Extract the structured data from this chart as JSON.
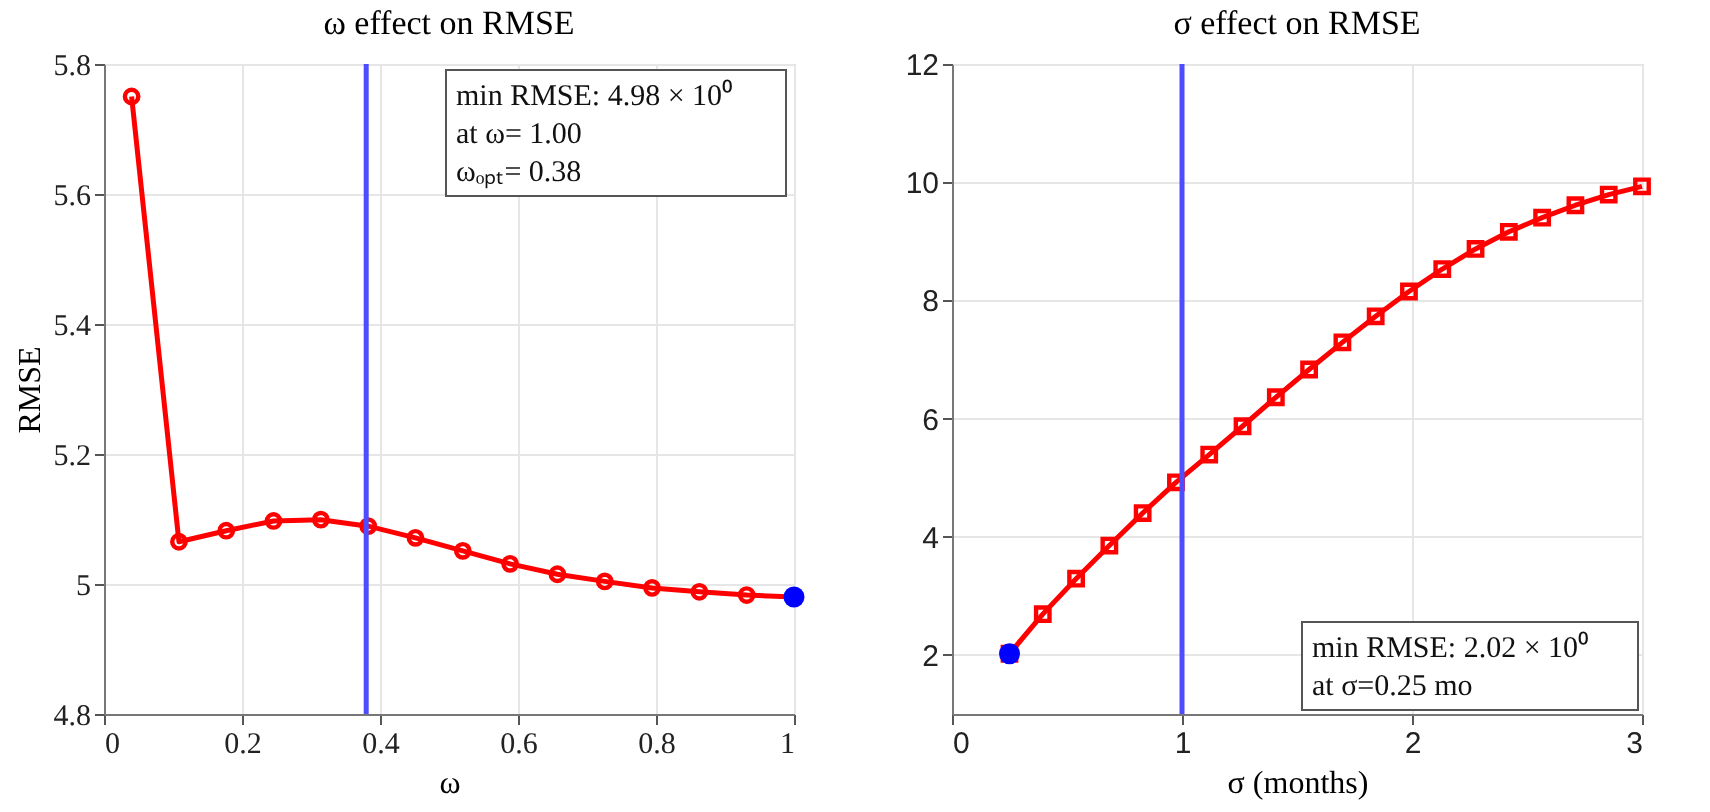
{
  "chart_data": [
    {
      "type": "line",
      "title": "ω effect on RMSE",
      "xlabel": "ω",
      "ylabel": "RMSE",
      "series": [
        {
          "color": "#ff0000",
          "marker": "circle",
          "line_style": "solid",
          "x": [
            0.04,
            0.1086,
            0.1771,
            0.2457,
            0.3143,
            0.3829,
            0.4514,
            0.52,
            0.5886,
            0.6571,
            0.7257,
            0.7943,
            0.8629,
            0.9314,
            1.0
          ],
          "values": [
            5.75,
            5.065,
            5.082,
            5.097,
            5.099,
            5.089,
            5.071,
            5.051,
            5.031,
            5.015,
            5.004,
            4.994,
            4.988,
            4.983,
            4.98
          ]
        },
        {
          "type": "scatter",
          "color": "#0000ff",
          "marker": "circle",
          "x": [
            1.0
          ],
          "values": [
            4.98
          ]
        }
      ],
      "xlim": [
        0,
        1
      ],
      "xticks": [
        0,
        0.2,
        0.4,
        0.6,
        0.8,
        1
      ],
      "ylim": [
        4.8,
        5.8
      ],
      "yticks": [
        4.8,
        5,
        5.2,
        5.4,
        5.6,
        5.8
      ],
      "ref_lines": [
        {
          "axis": "x",
          "value": 0.38,
          "color": "#4d4dff"
        }
      ],
      "annotations": [
        "min RMSE: 4.98 × 10⁰",
        "at ω= 1.00",
        "ωₒₚₜ= 0.38"
      ],
      "grid": true
    },
    {
      "type": "line",
      "title": "σ effect on RMSE",
      "xlabel": "σ (months)",
      "series": [
        {
          "color": "#ff0000",
          "marker": "square",
          "line_style": "solid",
          "x": [
            0.25,
            0.3947,
            0.5395,
            0.6842,
            0.8289,
            0.9737,
            1.1184,
            1.2632,
            1.4079,
            1.5526,
            1.6974,
            1.8421,
            1.9868,
            2.1316,
            2.2763,
            2.4211,
            2.5658,
            2.7105,
            2.8553,
            3.0
          ],
          "values": [
            2.02,
            2.69,
            3.29,
            3.85,
            4.4,
            4.92,
            5.39,
            5.87,
            6.36,
            6.83,
            7.29,
            7.73,
            8.15,
            8.53,
            8.87,
            9.16,
            9.4,
            9.61,
            9.79,
            9.93
          ]
        },
        {
          "type": "scatter",
          "color": "#0000ff",
          "marker": "circle",
          "x": [
            0.25
          ],
          "values": [
            2.02
          ]
        }
      ],
      "xlim": [
        0,
        3
      ],
      "xticks": [
        0,
        1,
        2,
        3
      ],
      "ylim": [
        1,
        12
      ],
      "yticks": [
        2,
        4,
        6,
        8,
        10,
        12
      ],
      "ref_lines": [
        {
          "axis": "x",
          "value": 1,
          "color": "#4d4dff"
        }
      ],
      "annotations": [
        "min RMSE: 2.02 × 10⁰",
        "at σ=0.25 mo"
      ],
      "grid": true
    }
  ]
}
